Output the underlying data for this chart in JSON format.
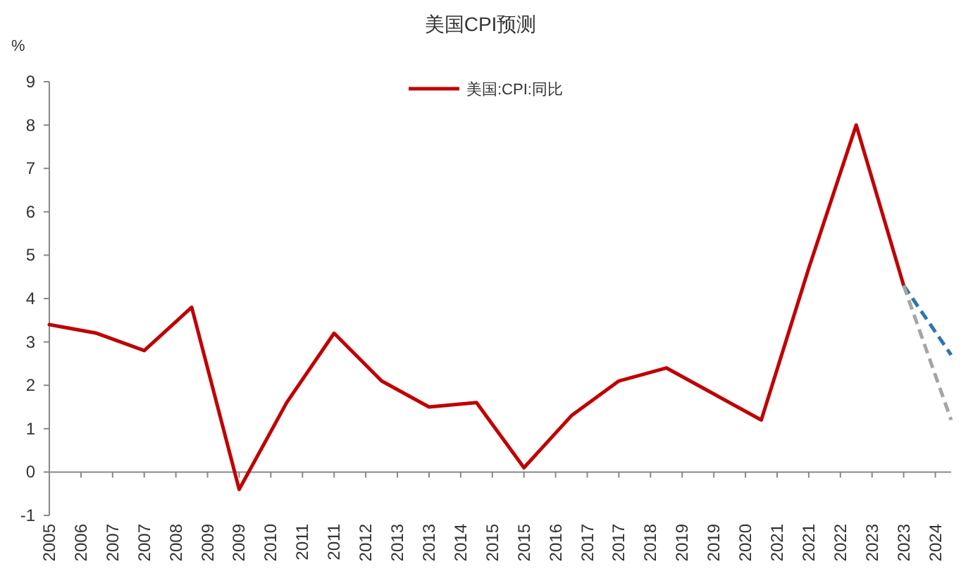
{
  "chart_data": {
    "type": "line",
    "title": "美国CPI预测",
    "ylabel": "%",
    "legend": "top",
    "marker": "none",
    "line_style": "solid",
    "xlim": [
      "2005-12",
      "2024-12"
    ],
    "ylim": [
      -1,
      9
    ],
    "yticks": [
      -1,
      0,
      1,
      2,
      3,
      4,
      5,
      6,
      7,
      8,
      9
    ],
    "xticks": [
      {
        "value": "2005-12",
        "label": "2005"
      },
      {
        "value": "2006-08",
        "label": "2006"
      },
      {
        "value": "2007-04",
        "label": "2007"
      },
      {
        "value": "2007-12",
        "label": "2007"
      },
      {
        "value": "2008-08",
        "label": "2008"
      },
      {
        "value": "2009-04",
        "label": "2009"
      },
      {
        "value": "2009-12",
        "label": "2009"
      },
      {
        "value": "2010-08",
        "label": "2010"
      },
      {
        "value": "2011-04",
        "label": "2011"
      },
      {
        "value": "2011-12",
        "label": "2011"
      },
      {
        "value": "2012-08",
        "label": "2012"
      },
      {
        "value": "2013-04",
        "label": "2013"
      },
      {
        "value": "2013-12",
        "label": "2013"
      },
      {
        "value": "2014-08",
        "label": "2014"
      },
      {
        "value": "2015-04",
        "label": "2015"
      },
      {
        "value": "2015-12",
        "label": "2015"
      },
      {
        "value": "2016-08",
        "label": "2016"
      },
      {
        "value": "2017-04",
        "label": "2017"
      },
      {
        "value": "2017-12",
        "label": "2017"
      },
      {
        "value": "2018-08",
        "label": "2018"
      },
      {
        "value": "2019-04",
        "label": "2019"
      },
      {
        "value": "2019-12",
        "label": "2019"
      },
      {
        "value": "2020-08",
        "label": "2020"
      },
      {
        "value": "2021-04",
        "label": "2021"
      },
      {
        "value": "2021-12",
        "label": "2021"
      },
      {
        "value": "2022-08",
        "label": "2022"
      },
      {
        "value": "2023-04",
        "label": "2023"
      },
      {
        "value": "2023-12",
        "label": "2023"
      },
      {
        "value": "2024-08",
        "label": "2024"
      }
    ],
    "series": [
      {
        "name": "美国:CPI:同比",
        "color": "#c00000",
        "x": [
          "2005-12",
          "2006-12",
          "2007-12",
          "2008-12",
          "2009-12",
          "2010-12",
          "2011-12",
          "2012-12",
          "2013-12",
          "2014-12",
          "2015-12",
          "2016-12",
          "2017-12",
          "2018-12",
          "2019-12",
          "2020-12",
          "2021-12",
          "2022-12",
          "2023-12"
        ],
        "values": [
          3.4,
          3.2,
          2.8,
          3.8,
          -0.4,
          1.6,
          3.2,
          2.1,
          1.5,
          1.6,
          0.1,
          1.3,
          2.1,
          2.4,
          1.8,
          1.2,
          4.7,
          8.0,
          4.3
        ]
      },
      {
        "color": "#2e75b6",
        "line_style": "dashed",
        "x": [
          "2023-12",
          "2024-12"
        ],
        "values": [
          4.3,
          2.7
        ]
      },
      {
        "color": "#a5a5a5",
        "line_style": "dashed",
        "x": [
          "2023-12",
          "2024-12"
        ],
        "values": [
          4.3,
          1.2
        ]
      }
    ]
  }
}
